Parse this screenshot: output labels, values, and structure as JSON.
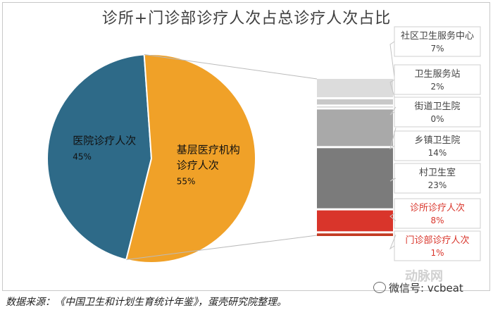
{
  "chart_data": {
    "type": "pie",
    "title": "诊所+门诊部诊疗人次占总诊疗人次占比",
    "pie": {
      "slices": [
        {
          "label_lines": [
            "医院诊疗人次"
          ],
          "value": 45,
          "value_label": "45%",
          "color": "#2e6a88",
          "label_color": "#111111"
        },
        {
          "label_lines": [
            "基层医疗机构",
            "诊疗人次"
          ],
          "value": 55,
          "value_label": "55%",
          "color": "#f0a128",
          "label_color": "#111111"
        }
      ]
    },
    "breakdown": {
      "type": "stacked-bar",
      "of": "基层医疗机构诊疗人次",
      "segments": [
        {
          "label": "社区卫生服务中心",
          "value": 7,
          "value_label": "7%",
          "color": "#dcdcdc",
          "text_color": "#444444"
        },
        {
          "label": "卫生服务站",
          "value": 2,
          "value_label": "2%",
          "color": "#c8c8c8",
          "text_color": "#444444"
        },
        {
          "label": "街道卫生院",
          "value": 0,
          "value_label": "0%",
          "color": "#bdbdbd",
          "text_color": "#444444"
        },
        {
          "label": "乡镇卫生院",
          "value": 14,
          "value_label": "14%",
          "color": "#a9a9a9",
          "text_color": "#444444"
        },
        {
          "label": "村卫生室",
          "value": 23,
          "value_label": "23%",
          "color": "#7b7b7b",
          "text_color": "#444444"
        },
        {
          "label": "诊所诊疗人次",
          "value": 8,
          "value_label": "8%",
          "color": "#d9352b",
          "text_color": "#d9352b"
        },
        {
          "label": "门诊部诊疗人次",
          "value": 1,
          "value_label": "1%",
          "color": "#c23a22",
          "text_color": "#d9352b"
        }
      ]
    }
  },
  "source": "数据来源：《中国卫生和计划生育统计年鉴》，蛋壳研究院整理。",
  "wechat": "微信号: vcbeat",
  "watermark": "动脉网"
}
